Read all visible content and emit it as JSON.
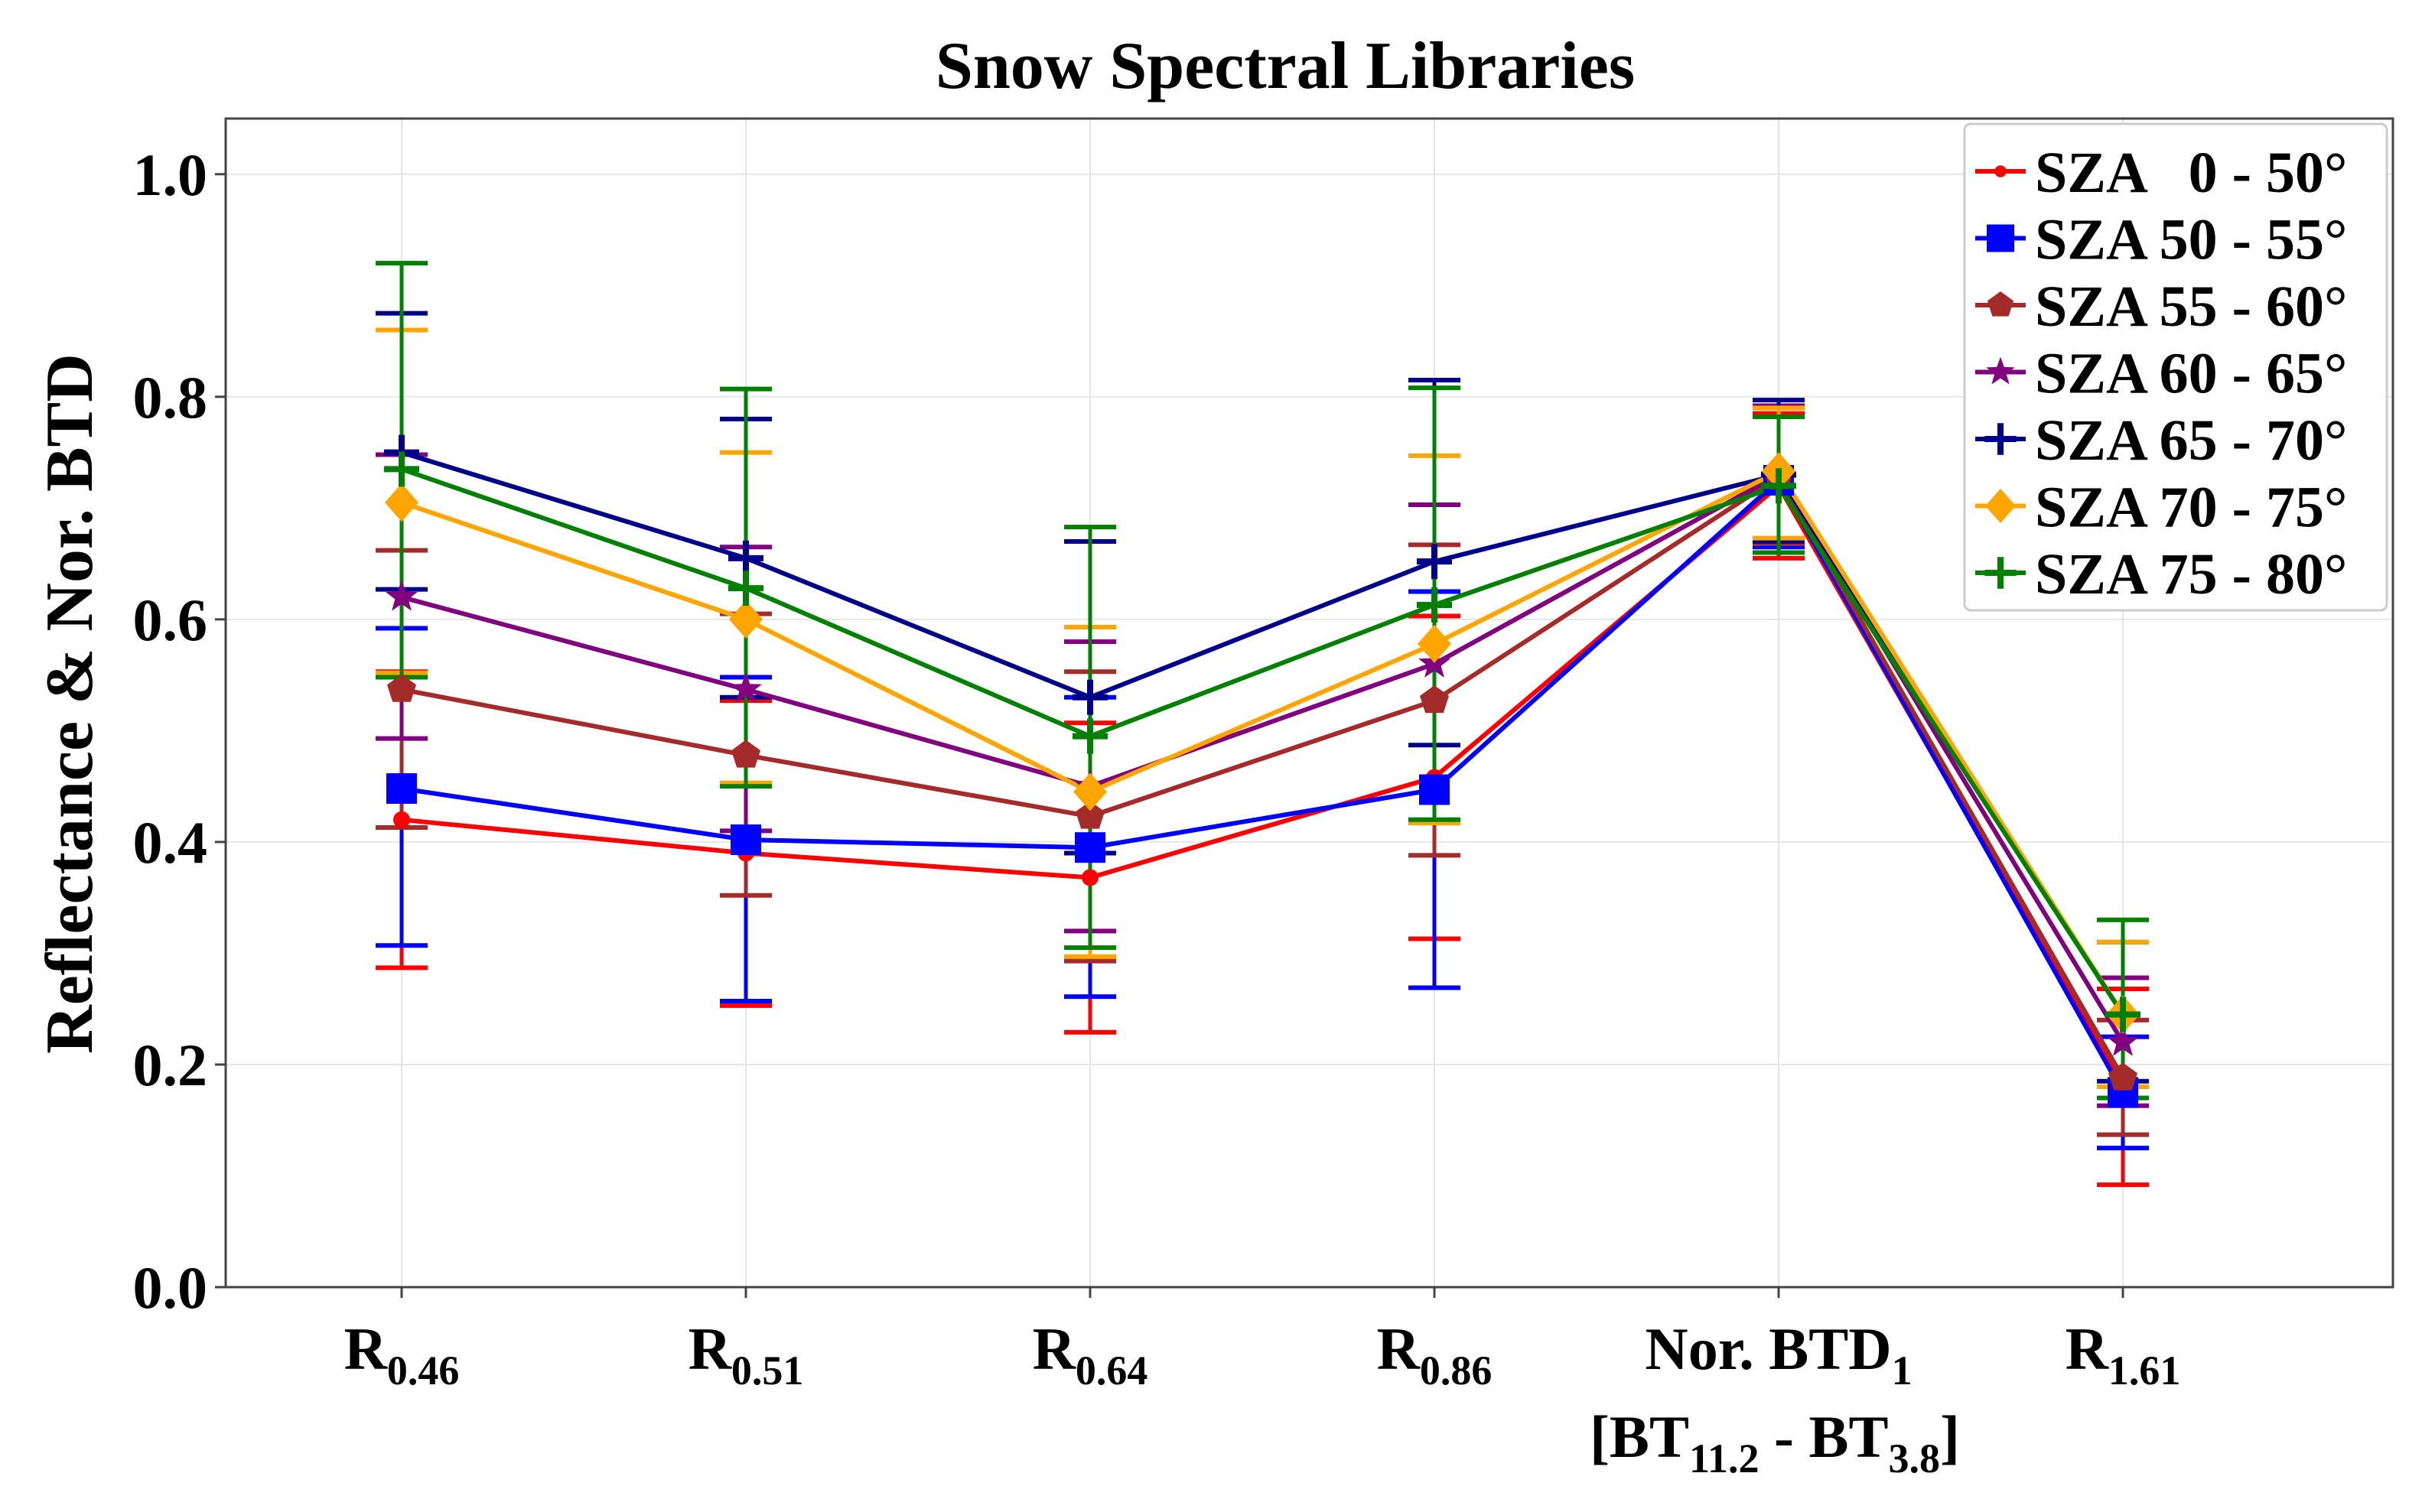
{
  "chart_data": {
    "type": "line",
    "title": "Snow Spectral Libraries",
    "ylabel": "Reflectance & Nor. BTD",
    "xlabel": "",
    "ylim": [
      0.0,
      1.05
    ],
    "yticks": [
      "0.0",
      "0.2",
      "0.4",
      "0.6",
      "0.8",
      "1.0"
    ],
    "ytick_values": [
      0.0,
      0.2,
      0.4,
      0.6,
      0.8,
      1.0
    ],
    "grid": true,
    "legend_position": "top-right",
    "categories": [
      {
        "main": "R",
        "sub": "0.46"
      },
      {
        "main": "R",
        "sub": "0.51"
      },
      {
        "main": "R",
        "sub": "0.64"
      },
      {
        "main": "R",
        "sub": "0.86"
      },
      {
        "main": "Nor. BTD",
        "sub": "1",
        "line2": {
          "open": "[BT",
          "sub1": "11.2",
          "mid": " - BT",
          "sub2": "3.8",
          "close": "]"
        }
      },
      {
        "main": "R",
        "sub": "1.61"
      }
    ],
    "series": [
      {
        "name": "SZA   0 - 50°",
        "color": "#ff0000",
        "marker": "circle",
        "values": [
          0.42,
          0.39,
          0.368,
          0.458,
          0.72,
          0.18
        ],
        "err_low": [
          0.287,
          0.253,
          0.229,
          0.313,
          0.655,
          0.092
        ],
        "err_high": [
          0.553,
          0.527,
          0.507,
          0.603,
          0.785,
          0.268
        ]
      },
      {
        "name": "SZA 50 - 55°",
        "color": "#0000ff",
        "marker": "square",
        "values": [
          0.448,
          0.402,
          0.395,
          0.447,
          0.725,
          0.175
        ],
        "err_low": [
          0.307,
          0.257,
          0.261,
          0.269,
          0.665,
          0.125
        ],
        "err_high": [
          0.592,
          0.548,
          0.53,
          0.625,
          0.79,
          0.225
        ]
      },
      {
        "name": "SZA 55 - 60°",
        "color": "#a52a2a",
        "marker": "pentagon",
        "values": [
          0.537,
          0.478,
          0.423,
          0.527,
          0.728,
          0.188
        ],
        "err_low": [
          0.413,
          0.352,
          0.293,
          0.388,
          0.668,
          0.137
        ],
        "err_high": [
          0.662,
          0.605,
          0.553,
          0.667,
          0.79,
          0.24
        ]
      },
      {
        "name": "SZA 60 - 65°",
        "color": "#800080",
        "marker": "star",
        "values": [
          0.62,
          0.537,
          0.45,
          0.56,
          0.73,
          0.22
        ],
        "err_low": [
          0.493,
          0.41,
          0.32,
          0.418,
          0.67,
          0.163
        ],
        "err_high": [
          0.748,
          0.665,
          0.58,
          0.703,
          0.792,
          0.278
        ]
      },
      {
        "name": "SZA 65 - 70°",
        "color": "#00008b",
        "marker": "plus",
        "values": [
          0.75,
          0.655,
          0.53,
          0.652,
          0.73,
          0.245
        ],
        "err_low": [
          0.627,
          0.53,
          0.39,
          0.487,
          0.67,
          0.185
        ],
        "err_high": [
          0.875,
          0.78,
          0.67,
          0.815,
          0.797,
          0.31
        ]
      },
      {
        "name": "SZA 70 - 75°",
        "color": "#ffa500",
        "marker": "diamond",
        "values": [
          0.705,
          0.6,
          0.445,
          0.578,
          0.733,
          0.245
        ],
        "err_low": [
          0.552,
          0.453,
          0.297,
          0.417,
          0.673,
          0.18
        ],
        "err_high": [
          0.86,
          0.75,
          0.593,
          0.747,
          0.79,
          0.31
        ]
      },
      {
        "name": "SZA 75 - 80°",
        "color": "#008000",
        "marker": "plus",
        "values": [
          0.735,
          0.628,
          0.495,
          0.613,
          0.72,
          0.245
        ],
        "err_low": [
          0.548,
          0.45,
          0.305,
          0.42,
          0.66,
          0.17
        ],
        "err_high": [
          0.92,
          0.807,
          0.683,
          0.808,
          0.782,
          0.33
        ]
      }
    ]
  }
}
